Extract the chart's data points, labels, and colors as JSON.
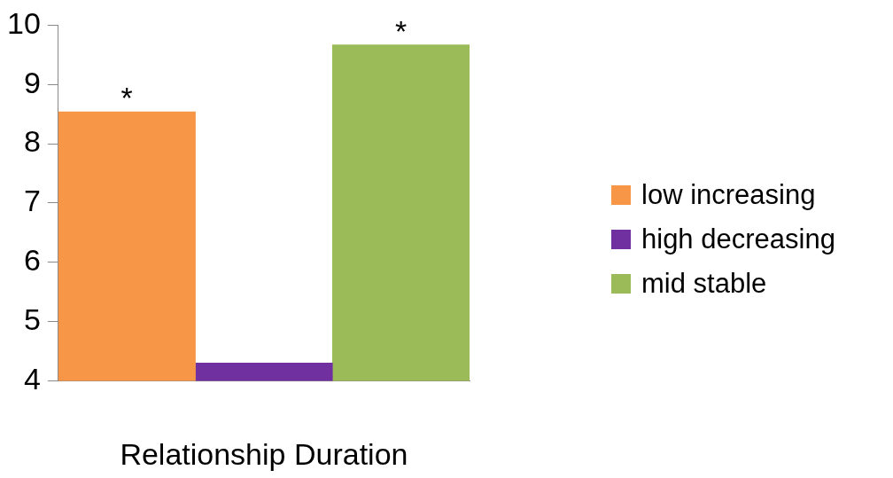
{
  "chart_data": {
    "type": "bar",
    "xlabel": "Relationship Duration",
    "categories": [
      null,
      null,
      null
    ],
    "series": [
      {
        "name": "low increasing",
        "color": "#f79646",
        "values": [
          8.54,
          null,
          null
        ]
      },
      {
        "name": "high decreasing",
        "color": "#7030a0",
        "values": [
          null,
          4.3,
          null
        ]
      },
      {
        "name": "mid stable",
        "color": "#9bbb59",
        "values": [
          null,
          null,
          9.67
        ]
      }
    ],
    "ylim": [
      4,
      10
    ],
    "yticks": [
      4,
      5,
      6,
      7,
      8,
      9,
      10
    ],
    "grid": false,
    "legend": "right",
    "annotations": [
      {
        "text": "*",
        "y": 8.54
      },
      {
        "text": "*",
        "y": 9.67
      }
    ]
  }
}
